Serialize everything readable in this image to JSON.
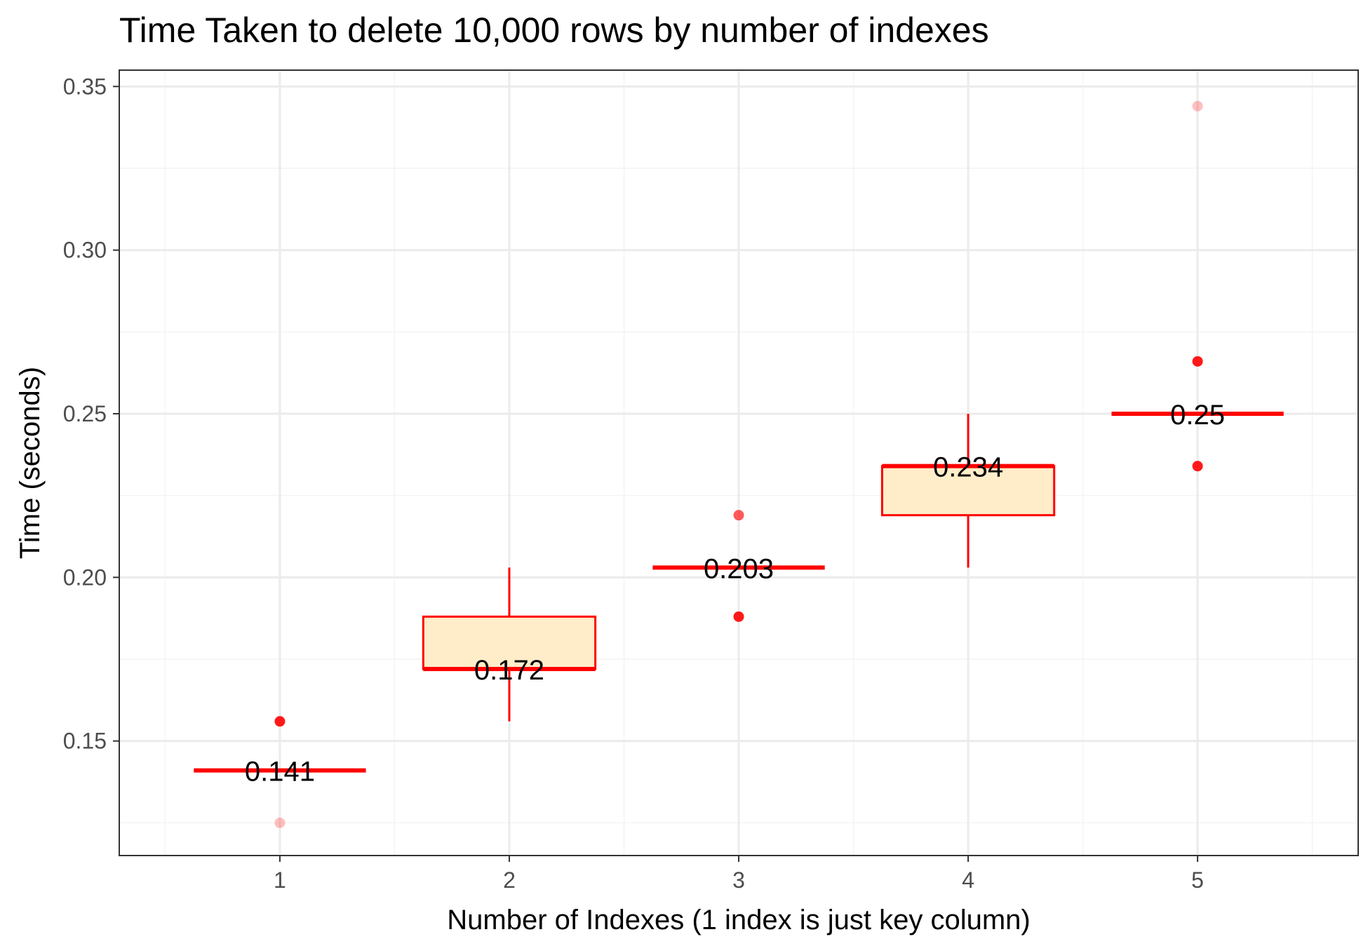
{
  "colors": {
    "box_outline": "#ff0000",
    "box_fill": "#ffedc9",
    "point": "#ff0000",
    "grid_major": "#ebebeb",
    "grid_minor": "#f4f4f4",
    "panel_border": "#333333",
    "tick_text": "#4d4d4d"
  },
  "chart_data": {
    "type": "boxplot",
    "title": "Time Taken to delete 10,000 rows by number of indexes",
    "xlabel": "Number of Indexes (1 index is just key column)",
    "ylabel": "Time (seconds)",
    "categories": [
      "1",
      "2",
      "3",
      "4",
      "5"
    ],
    "ylim": [
      0.115,
      0.355
    ],
    "yticks": [
      0.15,
      0.2,
      0.25,
      0.3,
      0.35
    ],
    "ytick_labels": [
      "0.15",
      "0.20",
      "0.25",
      "0.30",
      "0.35"
    ],
    "grid": true,
    "legend": "none",
    "boxes": [
      {
        "category": "1",
        "min": 0.141,
        "q1": 0.141,
        "median": 0.141,
        "q3": 0.141,
        "max": 0.141,
        "label": "0.141"
      },
      {
        "category": "2",
        "min": 0.156,
        "q1": 0.172,
        "median": 0.172,
        "q3": 0.188,
        "max": 0.203,
        "label": "0.172"
      },
      {
        "category": "3",
        "min": 0.203,
        "q1": 0.203,
        "median": 0.203,
        "q3": 0.203,
        "max": 0.203,
        "label": "0.203"
      },
      {
        "category": "4",
        "min": 0.203,
        "q1": 0.219,
        "median": 0.234,
        "q3": 0.234,
        "max": 0.25,
        "label": "0.234"
      },
      {
        "category": "5",
        "min": 0.25,
        "q1": 0.25,
        "median": 0.25,
        "q3": 0.25,
        "max": 0.25,
        "label": "0.25"
      }
    ],
    "points": [
      {
        "category": "1",
        "y": 0.156,
        "opacity": 0.9
      },
      {
        "category": "1",
        "y": 0.125,
        "opacity": 0.25
      },
      {
        "category": "3",
        "y": 0.219,
        "opacity": 0.65
      },
      {
        "category": "3",
        "y": 0.188,
        "opacity": 0.9
      },
      {
        "category": "5",
        "y": 0.344,
        "opacity": 0.25
      },
      {
        "category": "5",
        "y": 0.266,
        "opacity": 0.9
      },
      {
        "category": "5",
        "y": 0.234,
        "opacity": 0.9
      }
    ]
  }
}
